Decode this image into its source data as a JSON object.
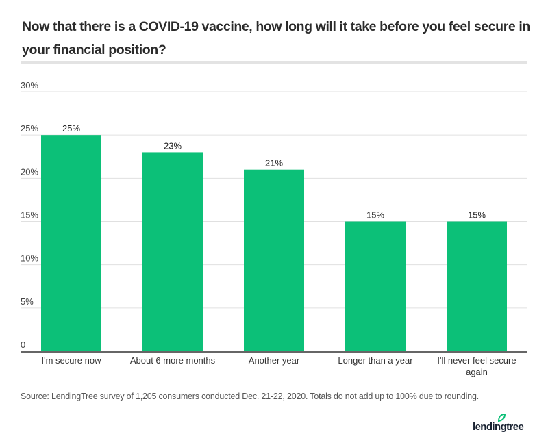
{
  "chart_data": {
    "type": "bar",
    "title": "Now that there is a COVID-19 vaccine, how long will it take before you feel secure in your financial position?",
    "categories": [
      "I'm secure now",
      "About 6 more months",
      "Another year",
      "Longer than a year",
      "I'll never feel secure again"
    ],
    "category_lines": [
      [
        "I'm secure now"
      ],
      [
        "About 6 more months"
      ],
      [
        "Another year"
      ],
      [
        "Longer than a year"
      ],
      [
        "I'll never feel secure",
        "again"
      ]
    ],
    "values": [
      25,
      23,
      21,
      15,
      15
    ],
    "data_labels": [
      "25%",
      "23%",
      "21%",
      "15%",
      "15%"
    ],
    "ylim": [
      0,
      30
    ],
    "yticks": [
      0,
      5,
      10,
      15,
      20,
      25,
      30
    ],
    "ytick_labels": [
      "0",
      "5%",
      "10%",
      "15%",
      "20%",
      "25%",
      "30%"
    ],
    "xlabel": "",
    "ylabel": "",
    "grid": true,
    "legend": "none",
    "bar_color": "#0cc078",
    "source": "Source: LendingTree survey of 1,205 consumers conducted Dec. 21-22, 2020. Totals do not add up to 100% due to rounding."
  },
  "branding": {
    "logo_text": "lendingtree",
    "logo_color": "#1a2332",
    "leaf_color": "#0cc078"
  }
}
